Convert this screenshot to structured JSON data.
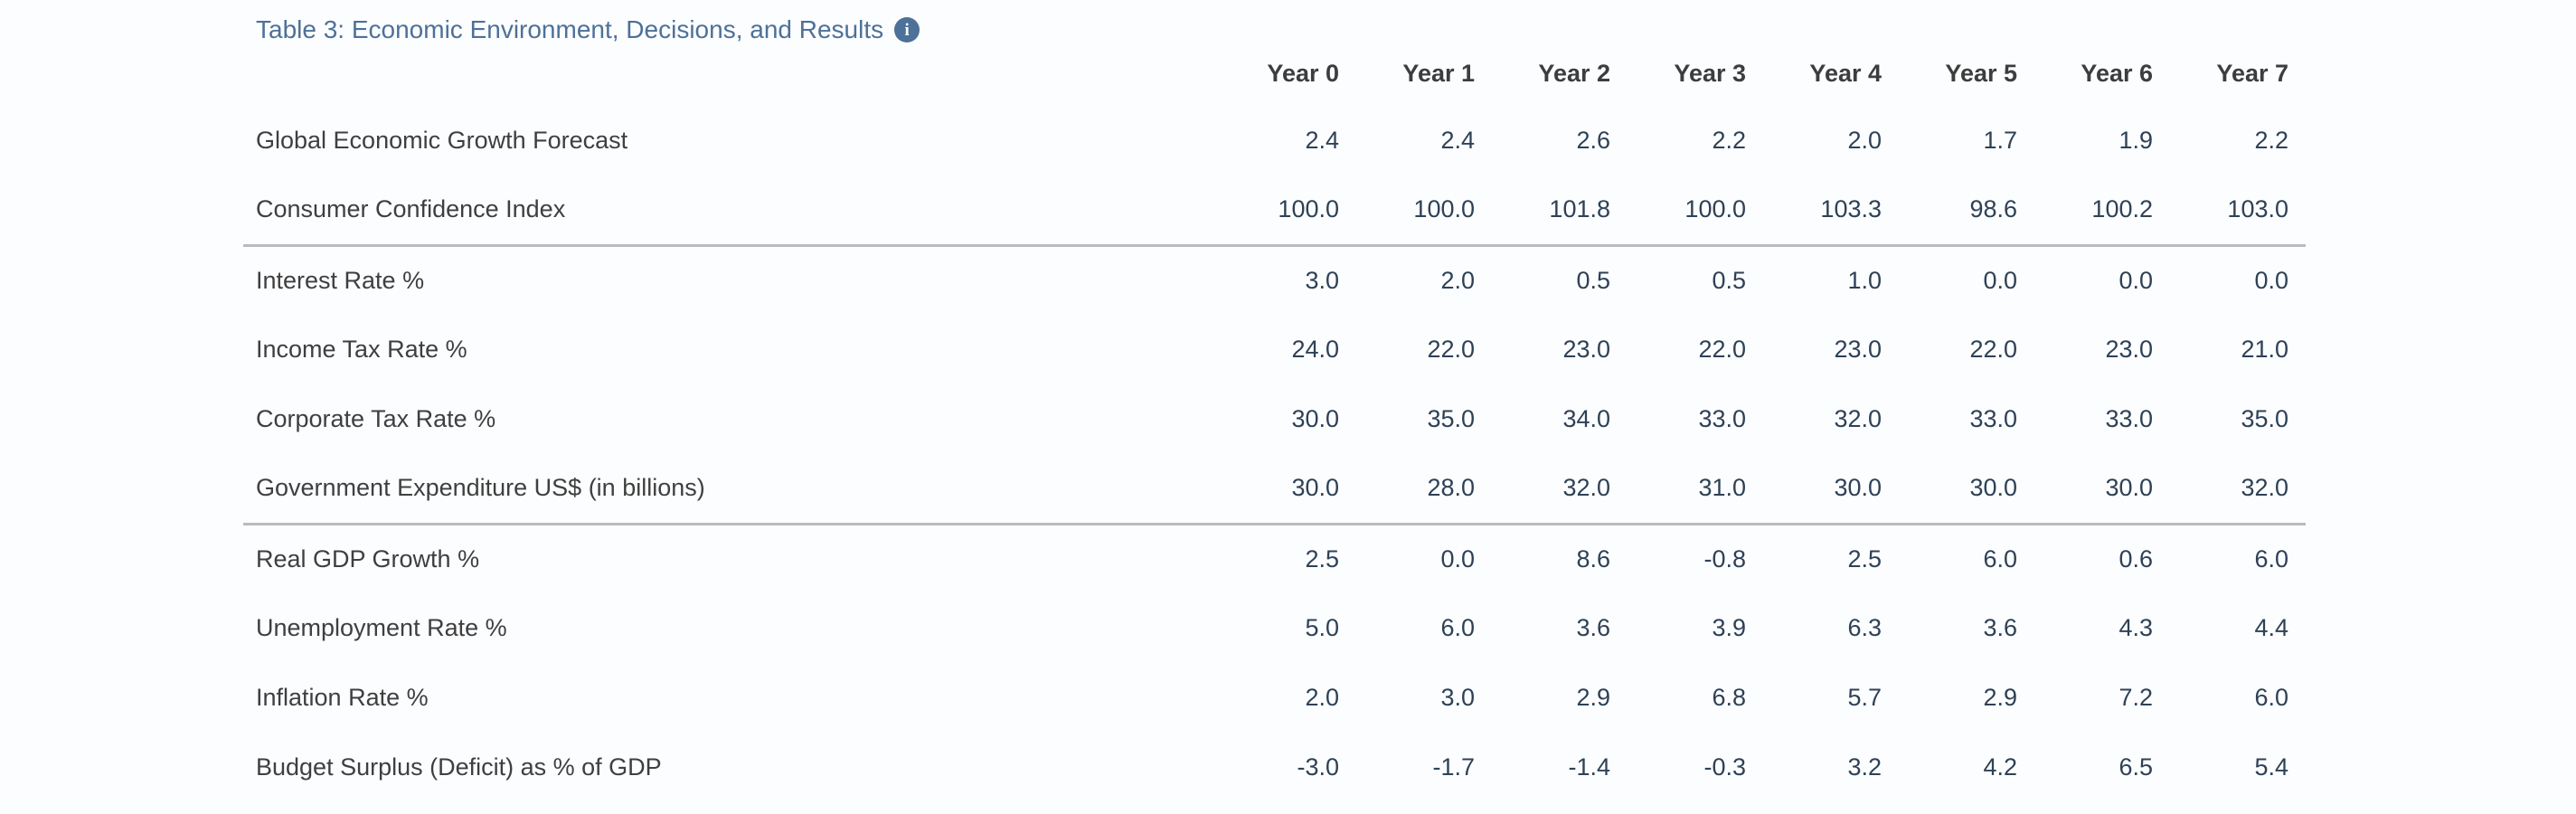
{
  "header": {
    "title": "Table 3: Economic Environment, Decisions, and Results",
    "info_icon": "info-circle-icon",
    "info_glyph": "i"
  },
  "colors": {
    "title_accent": "#4d7198",
    "header_text": "#3d3d3d",
    "row_label_text": "#3f3f3f",
    "value_text": "#2e4156",
    "divider": "#babbc0",
    "background": "#fcfdff"
  },
  "table": {
    "columns": [
      "Year 0",
      "Year 1",
      "Year 2",
      "Year 3",
      "Year 4",
      "Year 5",
      "Year 6",
      "Year 7"
    ],
    "groups": [
      {
        "rows": [
          {
            "label": "Global Economic Growth Forecast",
            "values": [
              "2.4",
              "2.4",
              "2.6",
              "2.2",
              "2.0",
              "1.7",
              "1.9",
              "2.2"
            ]
          },
          {
            "label": "Consumer Confidence Index",
            "values": [
              "100.0",
              "100.0",
              "101.8",
              "100.0",
              "103.3",
              "98.6",
              "100.2",
              "103.0"
            ]
          }
        ]
      },
      {
        "rows": [
          {
            "label": "Interest Rate %",
            "values": [
              "3.0",
              "2.0",
              "0.5",
              "0.5",
              "1.0",
              "0.0",
              "0.0",
              "0.0"
            ]
          },
          {
            "label": "Income Tax Rate %",
            "values": [
              "24.0",
              "22.0",
              "23.0",
              "22.0",
              "23.0",
              "22.0",
              "23.0",
              "21.0"
            ]
          },
          {
            "label": "Corporate Tax Rate %",
            "values": [
              "30.0",
              "35.0",
              "34.0",
              "33.0",
              "32.0",
              "33.0",
              "33.0",
              "35.0"
            ]
          },
          {
            "label": "Government Expenditure US$ (in billions)",
            "values": [
              "30.0",
              "28.0",
              "32.0",
              "31.0",
              "30.0",
              "30.0",
              "30.0",
              "32.0"
            ]
          }
        ]
      },
      {
        "rows": [
          {
            "label": "Real GDP Growth %",
            "values": [
              "2.5",
              "0.0",
              "8.6",
              "-0.8",
              "2.5",
              "6.0",
              "0.6",
              "6.0"
            ]
          },
          {
            "label": "Unemployment Rate %",
            "values": [
              "5.0",
              "6.0",
              "3.6",
              "3.9",
              "6.3",
              "3.6",
              "4.3",
              "4.4"
            ]
          },
          {
            "label": "Inflation Rate %",
            "values": [
              "2.0",
              "3.0",
              "2.9",
              "6.8",
              "5.7",
              "2.9",
              "7.2",
              "6.0"
            ]
          },
          {
            "label": "Budget Surplus (Deficit) as % of GDP",
            "values": [
              "-3.0",
              "-1.7",
              "-1.4",
              "-0.3",
              "3.2",
              "4.2",
              "6.5",
              "5.4"
            ]
          }
        ]
      }
    ]
  }
}
